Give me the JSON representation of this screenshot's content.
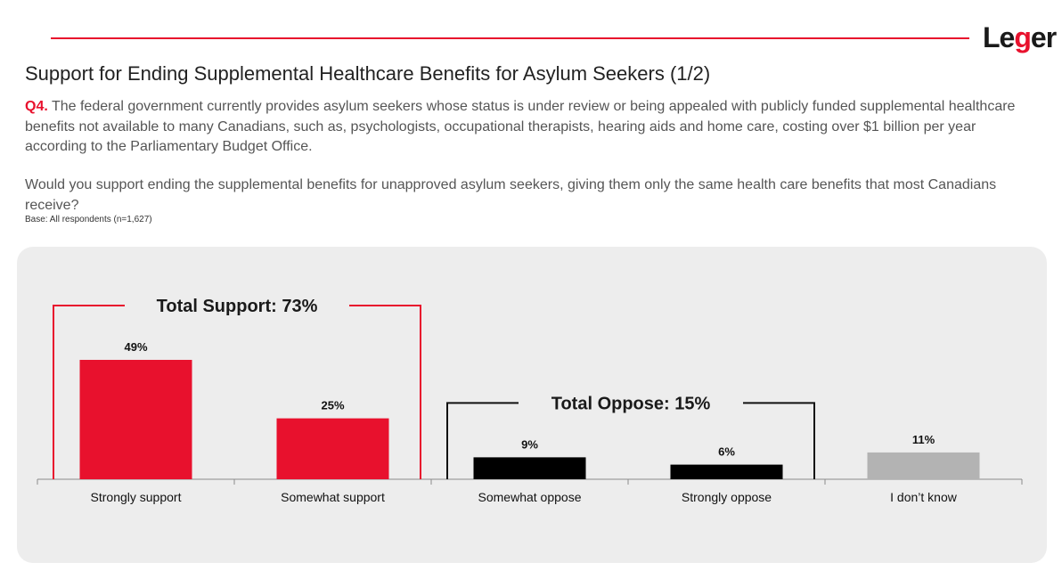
{
  "header": {
    "logo_text_a": "Le",
    "logo_text_g": "g",
    "logo_text_b": "er",
    "title": "Support for Ending Supplemental Healthcare Benefits for Asylum Seekers (1/2)",
    "question_number": "Q4.",
    "question_text": " The federal government currently provides asylum seekers whose status is under review or being appealed with publicly funded supplemental healthcare benefits not available to many Canadians, such as, psychologists, occupational therapists, hearing aids and home care, costing over $1 billion per year according to the Parliamentary Budget Office.",
    "question_prompt": "Would you support ending the supplemental benefits for unapproved asylum seekers, giving them only the same health care benefits that most Canadians receive?",
    "base_note": "Base: All respondents (n=1,627)"
  },
  "colors": {
    "accent": "#e8112d",
    "support_bar": "#e8112d",
    "oppose_bar": "#000000",
    "dontknow_bar": "#b3b3b3",
    "panel": "#ededed"
  },
  "chart_data": {
    "type": "bar",
    "categories": [
      "Strongly support",
      "Somewhat support",
      "Somewhat oppose",
      "Strongly oppose",
      "I don’t know"
    ],
    "values": [
      49,
      25,
      9,
      6,
      11
    ],
    "value_labels": [
      "49%",
      "25%",
      "9%",
      "6%",
      "11%"
    ],
    "bar_colors": [
      "#e8112d",
      "#e8112d",
      "#000000",
      "#000000",
      "#b3b3b3"
    ],
    "ylim": [
      0,
      60
    ],
    "grid": false,
    "groups": [
      {
        "label": "Total Support: 73%",
        "categories": [
          0,
          1
        ],
        "color": "#e8112d"
      },
      {
        "label": "Total Oppose: 15%",
        "categories": [
          2,
          3
        ],
        "color": "#111111"
      }
    ]
  }
}
